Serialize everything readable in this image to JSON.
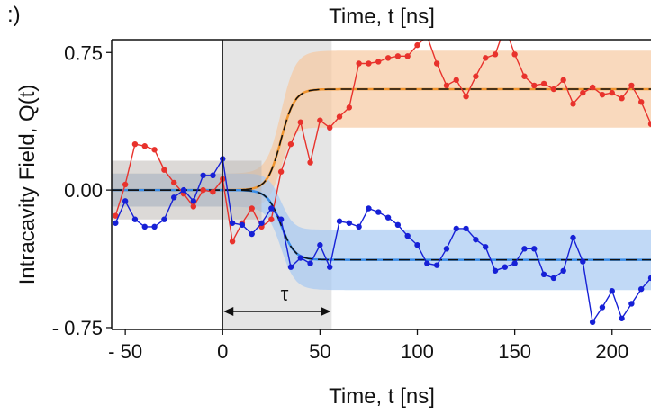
{
  "chart_data": {
    "type": "line",
    "panel_label": ":)",
    "top_xlabel": "Time, t [ns]",
    "xlabel": "Time, t [ns]",
    "ylabel": "Intracavity Field, Q(t)",
    "xlim": [
      -57,
      220
    ],
    "ylim": [
      -0.76,
      0.82
    ],
    "xticks": [
      -50,
      0,
      50,
      100,
      150,
      200
    ],
    "xtick_labels": [
      "- 50",
      "0",
      "50",
      "100",
      "150",
      "200"
    ],
    "yticks": [
      0.75,
      0.0,
      -0.75
    ],
    "ytick_labels": [
      "0.75",
      "0.00",
      "- 0.75"
    ],
    "shaded_window": [
      0,
      56
    ],
    "tau_label": "τ",
    "colors": {
      "red": "#e8322c",
      "blue": "#1620d6",
      "orange_band": "#f6c9a1",
      "blue_band": "#a7c9f2",
      "orange_line": "#f0942e",
      "blue_line": "#3a8de8",
      "gray_window": "#dcdcdc",
      "gray_band": "#b9b3b0"
    },
    "series": [
      {
        "color_key": "red",
        "x": [
          -55,
          -50,
          -45,
          -40,
          -35,
          -30,
          -25,
          -20,
          -15,
          -10,
          -5,
          0,
          5,
          10,
          15,
          20,
          25,
          30,
          35,
          40,
          45,
          50,
          55,
          60,
          65,
          70,
          75,
          80,
          85,
          90,
          95,
          100,
          105,
          110,
          115,
          120,
          125,
          130,
          135,
          140,
          145,
          150,
          155,
          160,
          165,
          170,
          175,
          180,
          185,
          190,
          195,
          200,
          205,
          210,
          215,
          220
        ],
        "y": [
          -0.14,
          0.03,
          0.25,
          0.24,
          0.22,
          0.11,
          0.04,
          -0.02,
          -0.09,
          0.0,
          -0.01,
          0.06,
          -0.28,
          -0.18,
          -0.1,
          -0.2,
          -0.16,
          0.1,
          0.25,
          0.37,
          0.15,
          0.38,
          0.34,
          0.4,
          0.45,
          0.69,
          0.69,
          0.7,
          0.72,
          0.73,
          0.73,
          0.79,
          0.84,
          0.69,
          0.57,
          0.6,
          0.51,
          0.62,
          0.72,
          0.74,
          0.89,
          0.74,
          0.62,
          0.57,
          0.58,
          0.55,
          0.6,
          0.47,
          0.53,
          0.56,
          0.52,
          0.53,
          0.5,
          0.57,
          0.48,
          0.36
        ]
      },
      {
        "color_key": "blue",
        "x": [
          -55,
          -50,
          -45,
          -40,
          -35,
          -30,
          -25,
          -20,
          -15,
          -10,
          -5,
          0,
          5,
          10,
          15,
          20,
          25,
          30,
          35,
          40,
          45,
          50,
          55,
          60,
          65,
          70,
          75,
          80,
          85,
          90,
          95,
          100,
          105,
          110,
          115,
          120,
          125,
          130,
          135,
          140,
          145,
          150,
          155,
          160,
          165,
          170,
          175,
          180,
          185,
          190,
          195,
          200,
          205,
          210,
          215,
          220
        ],
        "y": [
          -0.18,
          -0.06,
          -0.16,
          -0.2,
          -0.2,
          -0.16,
          -0.04,
          0.0,
          -0.06,
          0.08,
          0.08,
          0.17,
          -0.18,
          -0.19,
          -0.24,
          -0.18,
          -0.1,
          -0.16,
          -0.42,
          -0.37,
          -0.4,
          -0.3,
          -0.42,
          -0.17,
          -0.18,
          -0.2,
          -0.1,
          -0.12,
          -0.15,
          -0.19,
          -0.25,
          -0.3,
          -0.4,
          -0.41,
          -0.32,
          -0.21,
          -0.21,
          -0.27,
          -0.31,
          -0.44,
          -0.42,
          -0.4,
          -0.32,
          -0.32,
          -0.46,
          -0.48,
          -0.44,
          -0.26,
          -0.39,
          -0.72,
          -0.64,
          -0.55,
          -0.7,
          -0.62,
          -0.54,
          -0.48
        ]
      }
    ]
  }
}
